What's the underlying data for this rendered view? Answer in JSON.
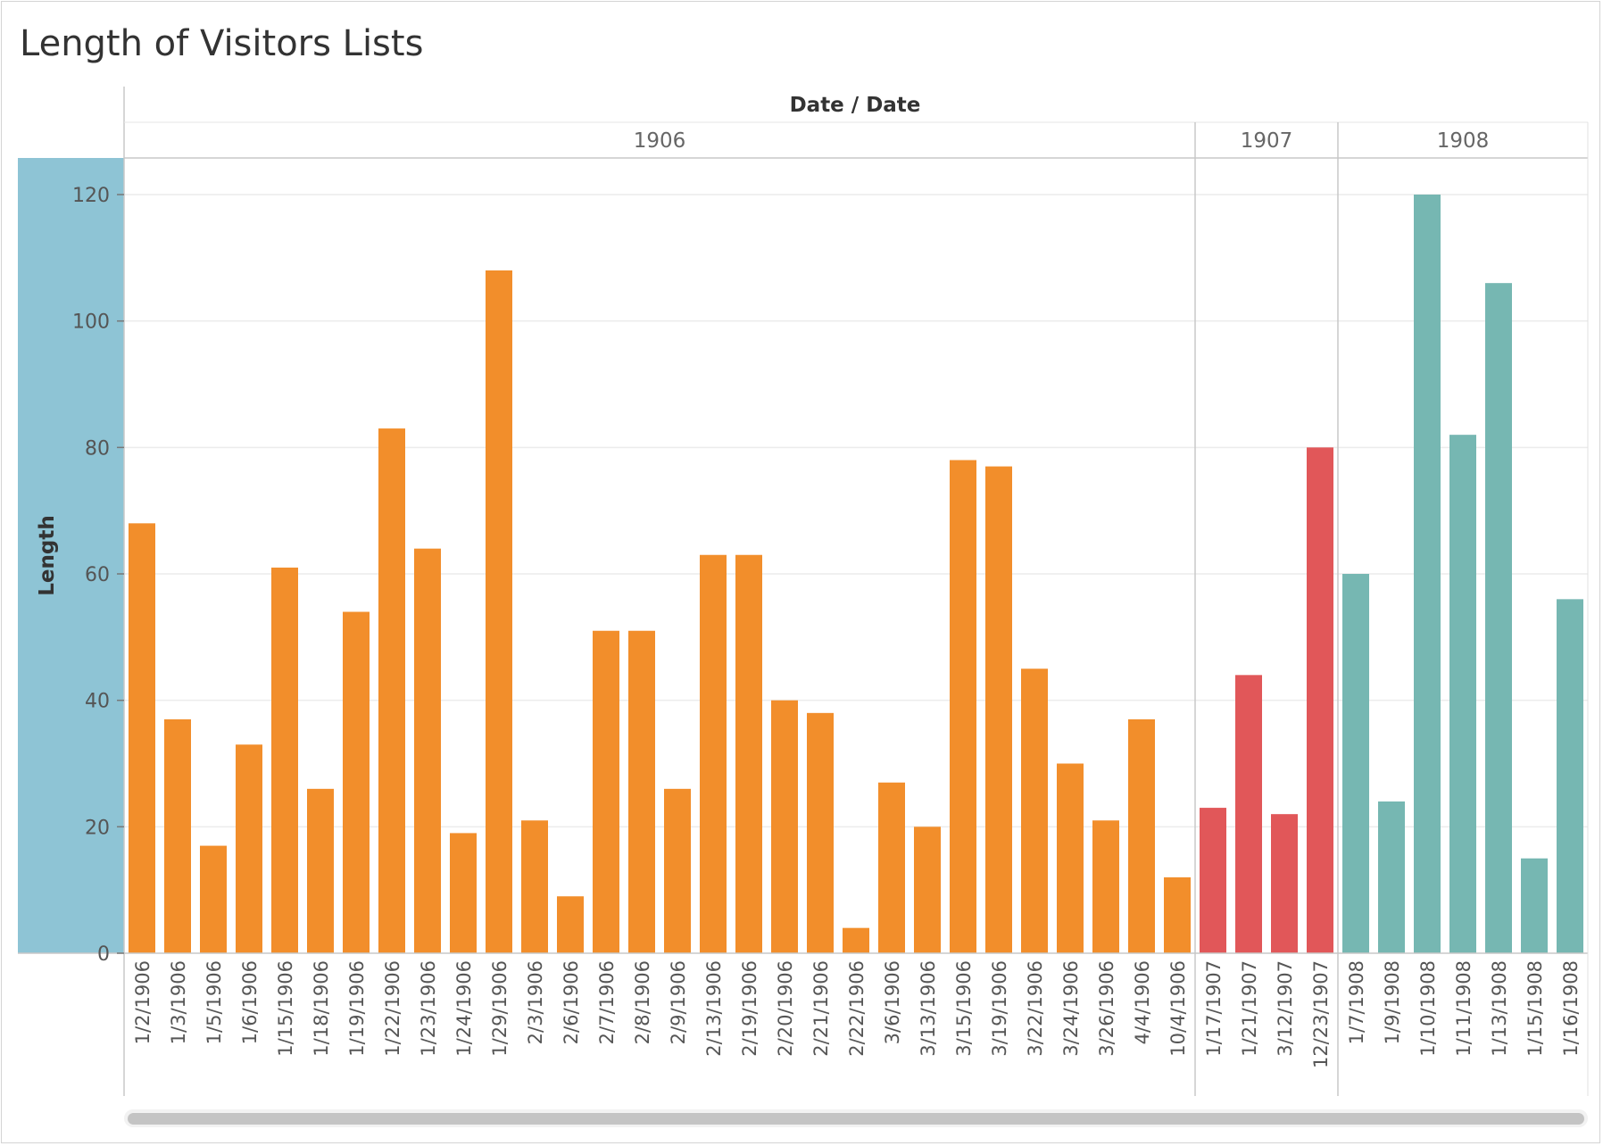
{
  "title": "Length of Visitors Lists",
  "chart_data": {
    "type": "bar",
    "title": "Length of Visitors Lists",
    "column_header": "Date / Date",
    "ylabel": "Length",
    "ylim": [
      0,
      120
    ],
    "yticks": [
      0,
      20,
      40,
      60,
      80,
      100,
      120
    ],
    "grid": true,
    "groups": [
      {
        "year": "1906",
        "color": "#F28E2B",
        "categories": [
          "1/2/1906",
          "1/3/1906",
          "1/5/1906",
          "1/6/1906",
          "1/15/1906",
          "1/18/1906",
          "1/19/1906",
          "1/22/1906",
          "1/23/1906",
          "1/24/1906",
          "1/29/1906",
          "2/3/1906",
          "2/6/1906",
          "2/7/1906",
          "2/8/1906",
          "2/9/1906",
          "2/13/1906",
          "2/19/1906",
          "2/20/1906",
          "2/21/1906",
          "2/22/1906",
          "3/6/1906",
          "3/13/1906",
          "3/15/1906",
          "3/19/1906",
          "3/22/1906",
          "3/24/1906",
          "3/26/1906",
          "4/4/1906",
          "10/4/1906"
        ],
        "values": [
          68,
          37,
          17,
          33,
          61,
          26,
          54,
          83,
          64,
          19,
          108,
          21,
          9,
          51,
          51,
          26,
          63,
          63,
          40,
          38,
          4,
          27,
          20,
          78,
          77,
          45,
          30,
          21,
          37,
          12
        ]
      },
      {
        "year": "1907",
        "color": "#E15759",
        "categories": [
          "1/17/1907",
          "1/21/1907",
          "3/12/1907",
          "12/23/1907"
        ],
        "values": [
          23,
          44,
          22,
          80
        ]
      },
      {
        "year": "1908",
        "color": "#76B7B2",
        "categories": [
          "1/7/1908",
          "1/9/1908",
          "1/10/1908",
          "1/11/1908",
          "1/13/1908",
          "1/15/1908",
          "1/16/1908"
        ],
        "values": [
          60,
          24,
          120,
          82,
          106,
          15,
          56
        ]
      }
    ]
  },
  "colors": {
    "axis_band": "#8EC4D5",
    "gridline": "#ececec",
    "divider": "#c8c8c8"
  }
}
